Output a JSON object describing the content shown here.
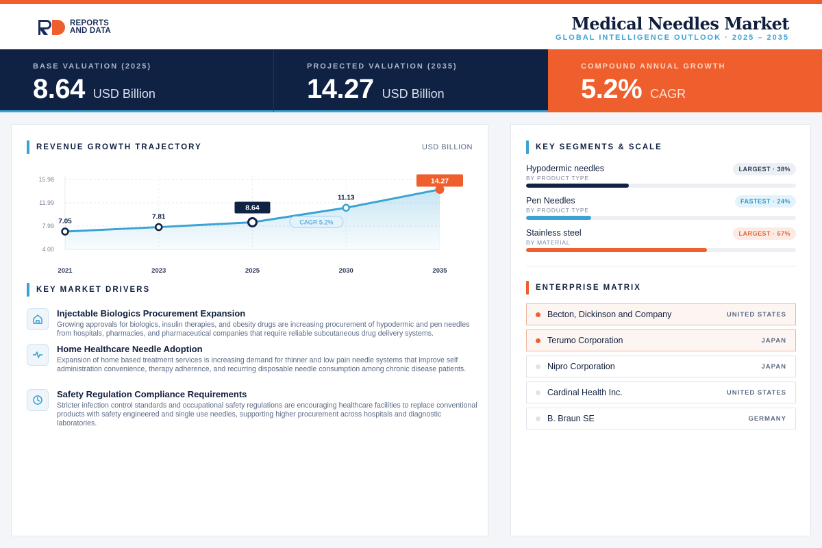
{
  "brand": {
    "logo_letters": "RD",
    "logo_line1": "REPORTS",
    "logo_line2": "AND DATA"
  },
  "header": {
    "title": "Medical Needles Market",
    "subtitle": "GLOBAL INTELLIGENCE OUTLOOK  ·  2025 – 2035"
  },
  "kpis": [
    {
      "label": "BASE VALUATION (2025)",
      "value": "8.64",
      "unit": "USD Billion"
    },
    {
      "label": "PROJECTED VALUATION (2035)",
      "value": "14.27",
      "unit": "USD Billion"
    },
    {
      "label": "COMPOUND ANNUAL GROWTH",
      "value": "5.2%",
      "unit": "CAGR"
    }
  ],
  "revenue": {
    "title": "REVENUE GROWTH TRAJECTORY",
    "unit": "USD BILLION"
  },
  "chart_data": {
    "type": "line",
    "x": [
      "2021",
      "2023",
      "2025",
      "2030",
      "2035"
    ],
    "values": [
      7.05,
      7.81,
      8.64,
      11.13,
      14.27
    ],
    "data_labels": [
      "7.05",
      "7.81",
      "8.64",
      "11.13",
      "14.27"
    ],
    "yticks": [
      "15.98",
      "11.99",
      "7.99",
      "4.00"
    ],
    "ylim": [
      4.0,
      15.98
    ],
    "annotation": "CAGR 5.2%",
    "highlight_base_index": 2,
    "highlight_end_index": 4,
    "grid": true,
    "colors": {
      "line": "#3aa3d4",
      "base": "#0f2244",
      "end": "#ee5f2d"
    }
  },
  "drivers": {
    "title": "KEY MARKET DRIVERS",
    "items": [
      {
        "icon": "building-icon",
        "title": "Injectable Biologics Procurement Expansion",
        "text": "Growing approvals for biologics, insulin therapies, and obesity drugs are increasing procurement of hypodermic and pen needles from hospitals, pharmacies, and pharmaceutical companies that require reliable subcutaneous drug delivery systems."
      },
      {
        "icon": "pulse-icon",
        "title": "Home Healthcare Needle Adoption",
        "text": "Expansion of home based treatment services is increasing demand for thinner and low pain needle systems that improve self administration convenience, therapy adherence, and recurring disposable needle consumption among chronic disease patients."
      },
      {
        "icon": "clock-icon",
        "title": "Safety Regulation Compliance Requirements",
        "text": "Stricter infection control standards and occupational safety regulations are encouraging healthcare facilities to replace conventional products with safety engineered and single use needles, supporting higher procurement across hospitals and diagnostic laboratories."
      }
    ]
  },
  "segments": {
    "title": "KEY SEGMENTS & SCALE",
    "items": [
      {
        "name": "Hypodermic needles",
        "category": "BY PRODUCT TYPE",
        "badge": "LARGEST · 38%",
        "share": 0.38,
        "color": "#0f2244",
        "badge_style": "gray"
      },
      {
        "name": "Pen Needles",
        "category": "BY PRODUCT TYPE",
        "badge": "FASTEST · 24%",
        "share": 0.24,
        "color": "#3aa3d4",
        "badge_style": "blue"
      },
      {
        "name": "Stainless steel",
        "category": "BY MATERIAL",
        "badge": "LARGEST · 67%",
        "share": 0.67,
        "color": "#ee5f2d",
        "badge_style": "orange"
      }
    ]
  },
  "enterprise": {
    "title": "ENTERPRISE MATRIX",
    "companies": [
      {
        "name": "Becton, Dickinson and Company",
        "country": "UNITED STATES",
        "highlight": true
      },
      {
        "name": "Terumo Corporation",
        "country": "JAPAN",
        "highlight": true
      },
      {
        "name": "Nipro Corporation",
        "country": "JAPAN",
        "highlight": false
      },
      {
        "name": "Cardinal Health Inc.",
        "country": "UNITED STATES",
        "highlight": false
      },
      {
        "name": "B. Braun SE",
        "country": "GERMANY",
        "highlight": false
      }
    ]
  }
}
